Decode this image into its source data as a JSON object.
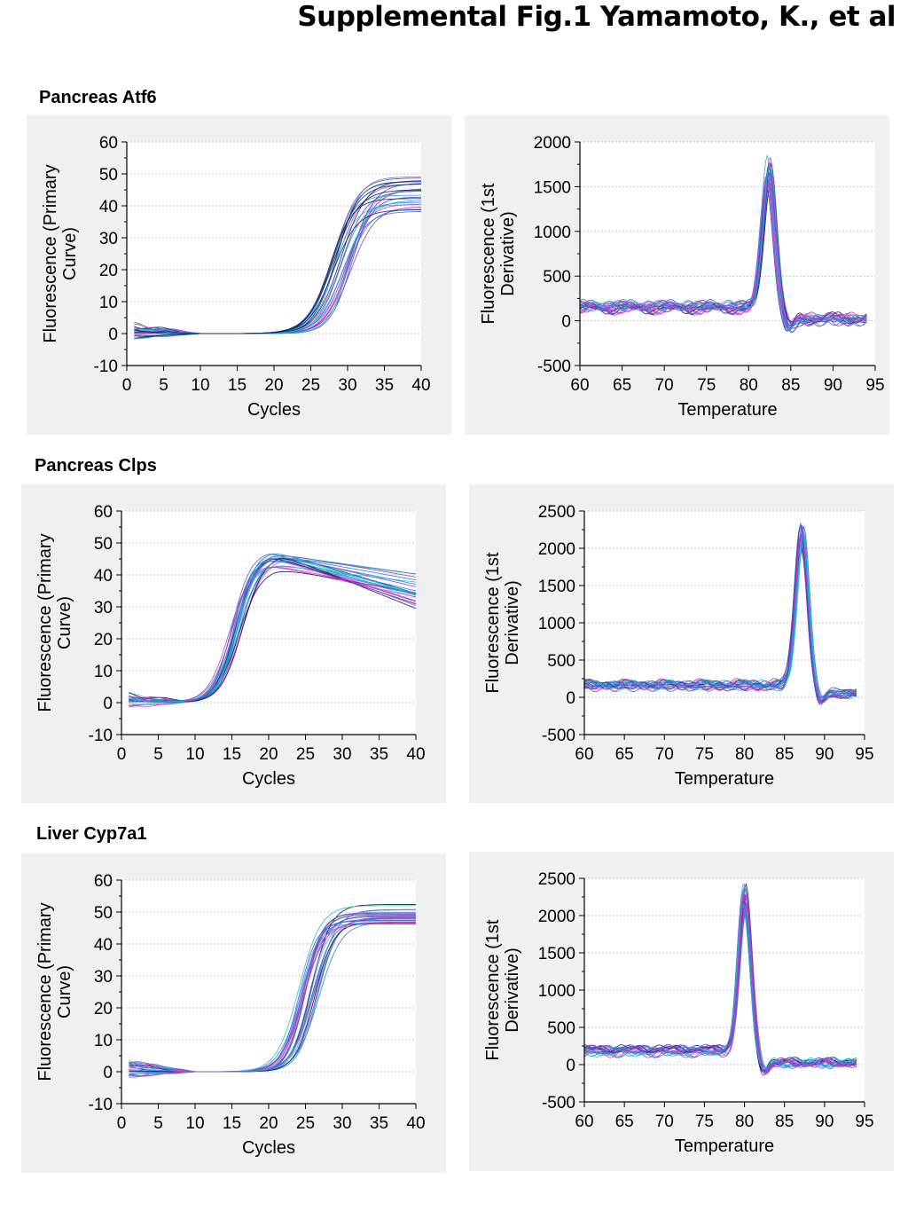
{
  "figure_title": "Supplemental Fig.1    Yamamoto, K., et al",
  "sections": [
    {
      "label": "Pancreas Atf6"
    },
    {
      "label": "Pancreas Clps"
    },
    {
      "label": "Liver Cyp7a1"
    }
  ],
  "colors": {
    "series_palette": [
      "#1a1a4a",
      "#0b2f6b",
      "#2b57b8",
      "#3aa0d8",
      "#1fc3e0",
      "#5a3fb0",
      "#8d3fc0",
      "#c23cc9",
      "#e040d0",
      "#6a5acd",
      "#13b5c8",
      "#2f7fd0"
    ],
    "panel_background": "#f0f0f0",
    "grid": "#c8c8c8"
  },
  "chart_data": [
    {
      "id": "atf6-amp",
      "type": "line",
      "xlabel": "Cycles",
      "ylabel": [
        "Fluorescence (Primary",
        "Curve)"
      ],
      "xlim": [
        0,
        40
      ],
      "ylim": [
        -10,
        60
      ],
      "xticks": [
        "0",
        "5",
        "10",
        "15",
        "20",
        "25",
        "30",
        "35",
        "40"
      ],
      "yticks": [
        "-10",
        "0",
        "10",
        "20",
        "30",
        "40",
        "50",
        "60"
      ],
      "grid": "horizontal dotted",
      "curve": "sigmoid",
      "series_summary": {
        "count": 24,
        "midpoint_range": [
          27.5,
          30.5
        ],
        "plateau_range": [
          38,
          52
        ],
        "slope_range": [
          1.4,
          1.8
        ],
        "start_cycle": 1
      }
    },
    {
      "id": "atf6-melt",
      "type": "line",
      "xlabel": "Temperature",
      "ylabel": [
        "Fluorescence (1st",
        "Derivative)"
      ],
      "xlim": [
        60,
        95
      ],
      "ylim": [
        -500,
        2000
      ],
      "xticks": [
        "60",
        "65",
        "70",
        "75",
        "80",
        "85",
        "90",
        "95"
      ],
      "yticks": [
        "-500",
        "0",
        "500",
        "1000",
        "1500",
        "2000"
      ],
      "grid": "horizontal dotted",
      "curve": "melt-peak",
      "series_summary": {
        "count": 22,
        "x_range": [
          60,
          94.2
        ],
        "peak_temp": 82.4,
        "peak_height_range": [
          1450,
          1700
        ],
        "baseline_before": 150,
        "baseline_after": 20
      }
    },
    {
      "id": "clps-amp",
      "type": "line",
      "xlabel": "Cycles",
      "ylabel": [
        "Fluorescence (Primary",
        "Curve)"
      ],
      "xlim": [
        0,
        40
      ],
      "ylim": [
        -10,
        60
      ],
      "xticks": [
        "0",
        "5",
        "10",
        "15",
        "20",
        "25",
        "30",
        "35",
        "40"
      ],
      "yticks": [
        "-10",
        "0",
        "10",
        "20",
        "30",
        "40",
        "50",
        "60"
      ],
      "grid": "horizontal dotted",
      "curve": "sigmoid-decay",
      "series_summary": {
        "count": 24,
        "midpoint_range": [
          14.5,
          16.5
        ],
        "plateau_range": [
          42,
          48
        ],
        "end_value_range": [
          29,
          42
        ],
        "start_cycle": 1
      }
    },
    {
      "id": "clps-melt",
      "type": "line",
      "xlabel": "Temperature",
      "ylabel": [
        "Fluorescence (1st",
        "Derivative)"
      ],
      "xlim": [
        60,
        95
      ],
      "ylim": [
        -500,
        2500
      ],
      "xticks": [
        "60",
        "65",
        "70",
        "75",
        "80",
        "85",
        "90",
        "95"
      ],
      "yticks": [
        "-500",
        "0",
        "500",
        "1000",
        "1500",
        "2000",
        "2500"
      ],
      "grid": "horizontal dotted",
      "curve": "melt-peak",
      "series_summary": {
        "count": 22,
        "x_range": [
          60,
          94.2
        ],
        "peak_temp": 87.2,
        "peak_height_range": [
          1900,
          2250
        ],
        "baseline_before": 160,
        "baseline_after": 60
      }
    },
    {
      "id": "cyp7a1-amp",
      "type": "line",
      "xlabel": "Cycles",
      "ylabel": [
        "Fluorescence (Primary",
        "Curve)"
      ],
      "xlim": [
        0,
        40
      ],
      "ylim": [
        -10,
        60
      ],
      "xticks": [
        "0",
        "5",
        "10",
        "15",
        "20",
        "25",
        "30",
        "35",
        "40"
      ],
      "yticks": [
        "-10",
        "0",
        "10",
        "20",
        "30",
        "40",
        "50",
        "60"
      ],
      "grid": "horizontal dotted",
      "curve": "sigmoid",
      "series_summary": {
        "count": 24,
        "midpoint_range": [
          24.0,
          27.0
        ],
        "plateau_range": [
          46,
          53
        ],
        "slope_range": [
          1.2,
          1.6
        ],
        "start_cycle": 1
      }
    },
    {
      "id": "cyp7a1-melt",
      "type": "line",
      "xlabel": "Temperature",
      "ylabel": [
        "Fluorescence (1st",
        "Derivative)"
      ],
      "xlim": [
        60,
        95
      ],
      "ylim": [
        -500,
        2500
      ],
      "xticks": [
        "60",
        "65",
        "70",
        "75",
        "80",
        "85",
        "90",
        "95"
      ],
      "yticks": [
        "-500",
        "0",
        "500",
        "1000",
        "1500",
        "2000",
        "2500"
      ],
      "grid": "horizontal dotted",
      "curve": "melt-peak",
      "series_summary": {
        "count": 22,
        "x_range": [
          60,
          94.2
        ],
        "peak_temp": 80.0,
        "peak_height_range": [
          1950,
          2350
        ],
        "baseline_before": 180,
        "baseline_after": 20
      }
    }
  ]
}
